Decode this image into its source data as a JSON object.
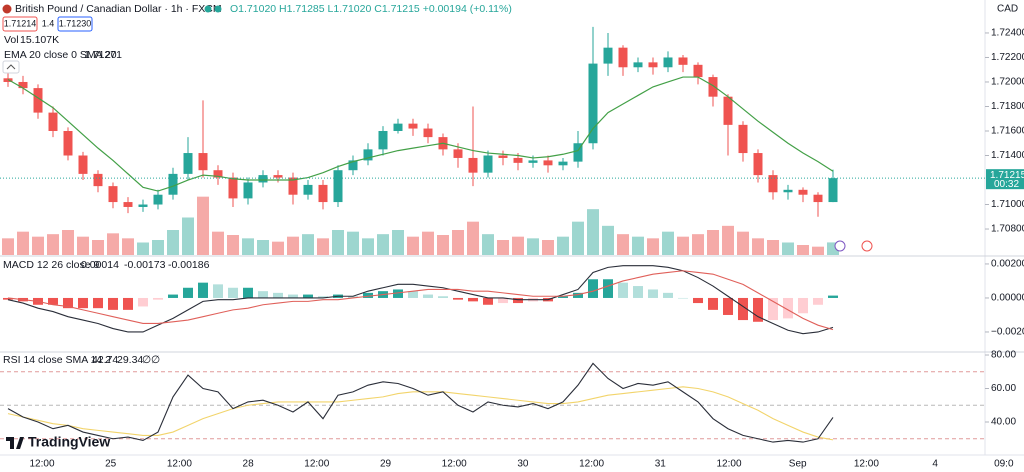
{
  "header": {
    "symbol": "British Pound / Canadian Dollar · 1h · FXCM",
    "ohlc": [
      "O1.71020",
      "H1.71285",
      "L1.71020",
      "C1.71215"
    ],
    "change": "+0.00194 (+0.11%)",
    "sell": "1.71214",
    "spread": "1.4",
    "buy": "1.71230",
    "vol_label": "Vol",
    "vol_value": "15.107K",
    "ema_label": "EMA 20 close 0 SMA 20",
    "currency": "CAD",
    "countdown": "00:32"
  },
  "chart_data": [
    {
      "type": "candlestick",
      "open": [
        1.7203,
        1.72,
        1.7195,
        1.7175,
        1.716,
        1.714,
        1.7125,
        1.7115,
        1.7102,
        1.7098,
        1.71,
        1.7108,
        1.7125,
        1.7142,
        1.7128,
        1.7122,
        1.7105,
        1.7118,
        1.7124,
        1.7122,
        1.7108,
        1.7116,
        1.7102,
        1.7128,
        1.7136,
        1.7145,
        1.716,
        1.7166,
        1.7162,
        1.7155,
        1.7145,
        1.7138,
        1.7126,
        1.714,
        1.7138,
        1.7134,
        1.7136,
        1.7132,
        1.7135,
        1.715,
        1.7215,
        1.7228,
        1.7212,
        1.7216,
        1.7212,
        1.722,
        1.7214,
        1.7204,
        1.7188,
        1.7165,
        1.7142,
        1.7124,
        1.711,
        1.7112,
        1.7108,
        1.7102
      ],
      "high": [
        1.7208,
        1.7205,
        1.7198,
        1.718,
        1.7163,
        1.7143,
        1.7128,
        1.7118,
        1.7106,
        1.7104,
        1.7112,
        1.713,
        1.7155,
        1.7185,
        1.7132,
        1.7126,
        1.7122,
        1.7128,
        1.7128,
        1.7126,
        1.712,
        1.712,
        1.7132,
        1.714,
        1.715,
        1.7164,
        1.717,
        1.717,
        1.7166,
        1.7158,
        1.715,
        1.718,
        1.7144,
        1.7144,
        1.7142,
        1.714,
        1.714,
        1.7138,
        1.716,
        1.7245,
        1.724,
        1.723,
        1.722,
        1.722,
        1.7225,
        1.7222,
        1.7216,
        1.7206,
        1.719,
        1.7168,
        1.7145,
        1.7128,
        1.7116,
        1.7114,
        1.711,
        1.71285
      ],
      "low": [
        1.7196,
        1.719,
        1.717,
        1.7155,
        1.7136,
        1.712,
        1.711,
        1.7097,
        1.7093,
        1.7094,
        1.7096,
        1.7104,
        1.712,
        1.7122,
        1.7116,
        1.7098,
        1.71,
        1.7114,
        1.7118,
        1.71,
        1.7104,
        1.7096,
        1.7098,
        1.7124,
        1.7132,
        1.714,
        1.7158,
        1.7156,
        1.715,
        1.714,
        1.713,
        1.7115,
        1.7122,
        1.7132,
        1.7128,
        1.713,
        1.7126,
        1.7128,
        1.713,
        1.7145,
        1.7205,
        1.7205,
        1.7208,
        1.7206,
        1.7208,
        1.7208,
        1.7198,
        1.718,
        1.714,
        1.7135,
        1.7118,
        1.7104,
        1.7104,
        1.7102,
        1.709,
        1.7102
      ],
      "close": [
        1.72,
        1.7195,
        1.7175,
        1.716,
        1.714,
        1.7125,
        1.7115,
        1.7102,
        1.7098,
        1.71,
        1.7108,
        1.7125,
        1.7142,
        1.7128,
        1.7122,
        1.7105,
        1.7118,
        1.7124,
        1.7122,
        1.7108,
        1.7116,
        1.7102,
        1.7128,
        1.7136,
        1.7145,
        1.716,
        1.7166,
        1.7162,
        1.7155,
        1.7145,
        1.7138,
        1.7126,
        1.714,
        1.7138,
        1.7134,
        1.7136,
        1.7132,
        1.7135,
        1.715,
        1.7215,
        1.7228,
        1.7212,
        1.7216,
        1.7212,
        1.722,
        1.7214,
        1.7204,
        1.7188,
        1.7165,
        1.7142,
        1.7124,
        1.711,
        1.7112,
        1.7108,
        1.7102,
        1.71215
      ],
      "up_color": "#26a69a",
      "down_color": "#ef5350",
      "ema": {
        "color": "#43a047",
        "values": [
          1.7202,
          1.7195,
          1.7187,
          1.7179,
          1.7168,
          1.7157,
          1.7146,
          1.7136,
          1.7125,
          1.7114,
          1.7111,
          1.7115,
          1.712,
          1.7124,
          1.7123,
          1.7121,
          1.712,
          1.712,
          1.712,
          1.712,
          1.7122,
          1.7126,
          1.7131,
          1.7135,
          1.7138,
          1.7141,
          1.7144,
          1.7146,
          1.7148,
          1.715,
          1.7147,
          1.7144,
          1.7142,
          1.7141,
          1.714,
          1.7138,
          1.7139,
          1.7141,
          1.7144,
          1.7162,
          1.7175,
          1.7182,
          1.7189,
          1.7196,
          1.72,
          1.7204,
          1.7204,
          1.7197,
          1.7188,
          1.7178,
          1.7168,
          1.7159,
          1.715,
          1.7142,
          1.7135,
          1.71271
        ]
      },
      "volume": {
        "values": [
          20,
          28,
          22,
          25,
          30,
          22,
          18,
          26,
          20,
          15,
          18,
          30,
          45,
          70,
          28,
          24,
          20,
          18,
          16,
          22,
          25,
          20,
          30,
          28,
          20,
          25,
          30,
          22,
          28,
          24,
          30,
          40,
          25,
          18,
          22,
          20,
          18,
          22,
          40,
          55,
          35,
          25,
          22,
          20,
          28,
          22,
          25,
          30,
          35,
          28,
          20,
          18,
          15,
          12,
          10,
          15.107
        ],
        "vlim": [
          0,
          120
        ],
        "up_color": "#9dd6cf",
        "down_color": "#f5aaa8"
      },
      "ylim": [
        1.70588,
        1.72669
      ],
      "yticks": [
        {
          "value": 1.724,
          "label": "1.72400"
        },
        {
          "value": 1.722,
          "label": "1.72200"
        },
        {
          "value": 1.72,
          "label": "1.72000"
        },
        {
          "value": 1.718,
          "label": "1.71800"
        },
        {
          "value": 1.716,
          "label": "1.71600"
        },
        {
          "value": 1.714,
          "label": "1.71400"
        },
        {
          "value": 1.71,
          "label": "1.71000"
        },
        {
          "value": 1.708,
          "label": "1.70800"
        }
      ]
    },
    {
      "type": "macd",
      "title": "MACD 12 26 close 9",
      "histogram": [
        -0.0001,
        -0.0002,
        -0.0004,
        -0.0004,
        -0.0006,
        -0.0006,
        -0.0006,
        -0.0007,
        -0.0007,
        -0.0005,
        -0.0001,
        0.0002,
        0.0006,
        0.0009,
        0.0008,
        0.0006,
        0.0006,
        0.0004,
        0.0003,
        0.0002,
        0.0002,
        0.0001,
        0.0002,
        0.0001,
        0.0003,
        0.0004,
        0.0005,
        0.0004,
        0.0002,
        0.0001,
        -0.0001,
        -0.0002,
        -0.0004,
        -0.0003,
        -0.0003,
        -0.0002,
        -0.0002,
        0.0001,
        0.0003,
        0.0011,
        0.0011,
        0.0009,
        0.0007,
        0.0005,
        0.0003,
        0.0,
        -0.0003,
        -0.0007,
        -0.001,
        -0.0013,
        -0.0014,
        -0.0013,
        -0.0012,
        -0.0009,
        -0.0004,
        0.00014
      ],
      "macd": [
        -0.0001,
        -0.0003,
        -0.0006,
        -0.0008,
        -0.0011,
        -0.0013,
        -0.0015,
        -0.0018,
        -0.002,
        -0.002,
        -0.0016,
        -0.0012,
        -0.0007,
        -0.0002,
        -0.0001,
        -0.0001,
        0,
        0,
        0,
        0,
        0,
        0,
        0.0001,
        0.0001,
        0.0004,
        0.0006,
        0.0008,
        0.0008,
        0.0007,
        0.0006,
        0.0004,
        0.0002,
        0,
        0,
        -0.0001,
        -0.0001,
        -0.0001,
        0.0002,
        0.0005,
        0.0015,
        0.0018,
        0.0019,
        0.0019,
        0.0019,
        0.0018,
        0.0016,
        0.0012,
        0.0007,
        0.0001,
        -0.0005,
        -0.0011,
        -0.0015,
        -0.0019,
        -0.0021,
        -0.002,
        -0.00173
      ],
      "signal": [
        0,
        -0.0001,
        -0.0002,
        -0.0004,
        -0.0005,
        -0.0007,
        -0.0009,
        -0.0011,
        -0.0013,
        -0.0015,
        -0.0015,
        -0.0014,
        -0.0013,
        -0.0011,
        -0.0009,
        -0.0007,
        -0.0006,
        -0.0004,
        -0.0003,
        -0.0002,
        -0.0002,
        -0.0001,
        -0.0001,
        0,
        0.0001,
        0.0002,
        0.0003,
        0.0004,
        0.0005,
        0.0005,
        0.0005,
        0.0004,
        0.0004,
        0.0003,
        0.0002,
        0.0001,
        0.0001,
        0.0001,
        0.0002,
        0.0004,
        0.0007,
        0.001,
        0.0012,
        0.0014,
        0.0015,
        0.0016,
        0.0015,
        0.0014,
        0.0011,
        0.0008,
        0.0003,
        -0.0002,
        -0.0007,
        -0.0012,
        -0.0016,
        -0.00186
      ],
      "colors": {
        "macd": "#2a2e39",
        "signal": "#e0605a",
        "hist_up": "#26a69a",
        "hist_up_weak": "#b2dfdb",
        "hist_down": "#ef5350",
        "hist_down_weak": "#ffcdd2",
        "legend_hist": "#26a69a",
        "legend_macd": "#2962ff",
        "legend_signal": "#ef5350"
      },
      "ylim": [
        -0.00306,
        0.00235
      ],
      "yticks": [
        {
          "value": 0.002,
          "label": "0.00200"
        },
        {
          "value": 0,
          "label": "0.00000"
        },
        {
          "value": -0.002,
          "label": "−0.00200"
        }
      ]
    },
    {
      "type": "rsi",
      "title": "RSI 14 close SMA 14 2",
      "empty_marks": [
        "∅",
        "∅"
      ],
      "rsi": {
        "color": "#2a2e39",
        "values": [
          48,
          43,
          40,
          36,
          38,
          34,
          32,
          30,
          31,
          29,
          34,
          55,
          68,
          60,
          58,
          48,
          52,
          53,
          50,
          46,
          52,
          42,
          56,
          58,
          62,
          64,
          63,
          60,
          56,
          58,
          50,
          46,
          52,
          50,
          49,
          51,
          48,
          52,
          62,
          75,
          66,
          60,
          63,
          62,
          64,
          58,
          52,
          42,
          36,
          32,
          30,
          28,
          29,
          28,
          30,
          42.74
        ]
      },
      "sma": {
        "color": "#f2d46b",
        "values": [
          45,
          43,
          41,
          39,
          38,
          36,
          35,
          34,
          33,
          32,
          32,
          34,
          38,
          42,
          45,
          48,
          50,
          51,
          52,
          52,
          52,
          52,
          52,
          53,
          54,
          55,
          57,
          58,
          58,
          58,
          57,
          56,
          55,
          54,
          53,
          52,
          51,
          51,
          52,
          54,
          56,
          57,
          58,
          59,
          60,
          61,
          60,
          58,
          55,
          51,
          47,
          42,
          38,
          34,
          31,
          29.34
        ]
      },
      "levels": [
        70,
        50,
        30
      ],
      "level_colors": [
        "#e09a9a",
        "#b8b8b8",
        "#e09a9a"
      ],
      "ylim": [
        20.3,
        81.8
      ],
      "yticks": [
        {
          "value": 80,
          "label": "80.00"
        },
        {
          "value": 60,
          "label": "60.00"
        },
        {
          "value": 40,
          "label": "40.00"
        }
      ]
    }
  ],
  "time_axis": [
    "12:00",
    "25",
    "12:00",
    "28",
    "12:00",
    "29",
    "12:00",
    "30",
    "12:00",
    "31",
    "12:00",
    "Sep",
    "12:00",
    "4",
    "09:0"
  ],
  "brand": "TradingView"
}
